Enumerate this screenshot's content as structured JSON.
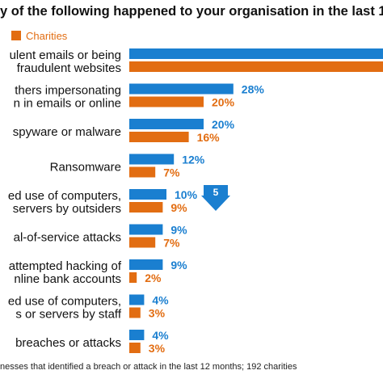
{
  "title": "y of the following happened to your organisation in the last 1",
  "legend": {
    "label": "Charities",
    "color": "#e26d12"
  },
  "footnote": "nesses that identified a breach or attack in the last 12 months; 192 charities",
  "callout": {
    "text": "5"
  },
  "colors": {
    "business": "#1a7fd0",
    "charities": "#e26d12"
  },
  "chart_data": {
    "type": "bar",
    "orientation": "horizontal",
    "xlim": [
      0,
      100
    ],
    "categories": [
      [
        "ulent emails or being",
        "fraudulent websites"
      ],
      [
        "thers impersonating",
        "n in emails or online"
      ],
      [
        "spyware or malware"
      ],
      [
        "Ransomware"
      ],
      [
        "ed use of computers,",
        "servers by outsiders"
      ],
      [
        "al-of-service attacks"
      ],
      [
        "attempted hacking of",
        "nline bank accounts"
      ],
      [
        "ed use of computers,",
        "s or servers by staff"
      ],
      [
        "breaches or attacks"
      ]
    ],
    "series": [
      {
        "values": [
          null,
          28,
          20,
          12,
          10,
          9,
          9,
          4,
          4
        ],
        "labels": [
          "",
          "28%",
          "20%",
          "12%",
          "10%",
          "9%",
          "9%",
          "4%",
          "4%"
        ]
      },
      {
        "name": "Charities",
        "values": [
          null,
          20,
          16,
          7,
          9,
          7,
          2,
          3,
          3
        ],
        "labels": [
          "",
          "20%",
          "16%",
          "7%",
          "9%",
          "7%",
          "2%",
          "3%",
          "3%"
        ]
      }
    ]
  }
}
